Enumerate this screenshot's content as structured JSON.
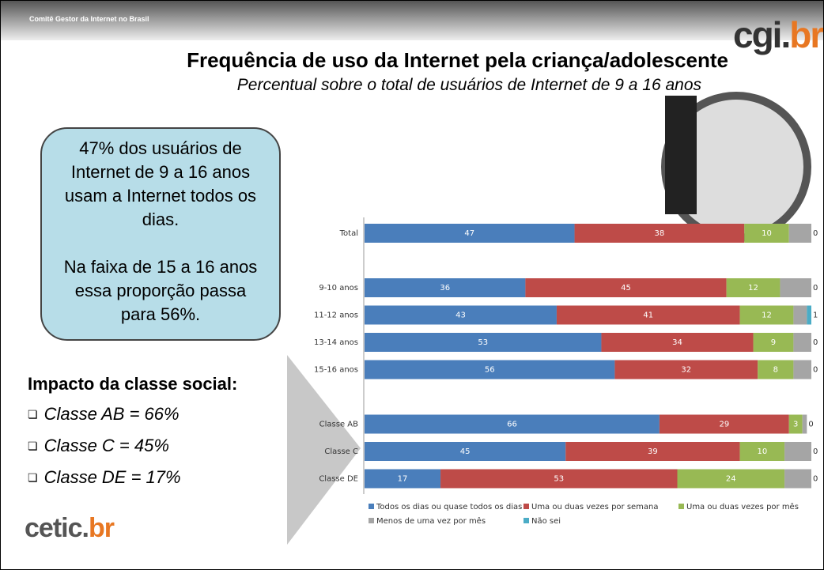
{
  "header": {
    "org": "Comitê Gestor da Internet no Brasil",
    "logo_main": "cgi.",
    "logo_accent": "br"
  },
  "title": "Frequência de uso da Internet pela criança/adolescente",
  "subtitle": "Percentual sobre o total de usuários de Internet de 9 a 16 anos",
  "callout": [
    "47% dos usuários de Internet de 9 a 16 anos usam a Internet todos os dias.",
    "Na faixa de 15 a 16 anos essa proporção passa para 56%."
  ],
  "impact": {
    "heading": "Impacto da classe social:",
    "items": [
      "Classe AB = 66%",
      "Classe C = 45%",
      "Classe DE = 17%"
    ]
  },
  "footer": {
    "logo_main": "cetic.",
    "logo_accent": "br"
  },
  "chart_data": {
    "type": "stacked-bar-horizontal",
    "categories": [
      "Total",
      null,
      "9-10 anos",
      "11-12 anos",
      "13-14 anos",
      "15-16 anos",
      null,
      "Classe AB",
      "Classe C",
      "Classe DE"
    ],
    "xlim": [
      0,
      100
    ],
    "series": [
      {
        "name": "Todos os dias ou quase todos os dias",
        "color": "#4a7ebb",
        "data_labels": true,
        "values": [
          47,
          null,
          36,
          43,
          53,
          56,
          null,
          66,
          45,
          17
        ]
      },
      {
        "name": "Uma ou duas vezes por semana",
        "color": "#be4b48",
        "data_labels": true,
        "values": [
          38,
          null,
          45,
          41,
          34,
          32,
          null,
          29,
          39,
          53
        ]
      },
      {
        "name": "Uma ou duas vezes por mês",
        "color": "#98b954",
        "data_labels": true,
        "values": [
          10,
          null,
          12,
          12,
          9,
          8,
          null,
          3,
          10,
          24
        ]
      },
      {
        "name": "Menos de uma vez por mês",
        "color": "#a5a5a5",
        "data_labels": false,
        "values": [
          5,
          null,
          7,
          3,
          4,
          4,
          null,
          1,
          6,
          6
        ]
      },
      {
        "name": "Não sei",
        "color": "#4bacc6",
        "data_labels": true,
        "values": [
          0,
          null,
          0,
          1,
          0,
          0,
          null,
          0,
          0,
          0
        ]
      }
    ]
  }
}
